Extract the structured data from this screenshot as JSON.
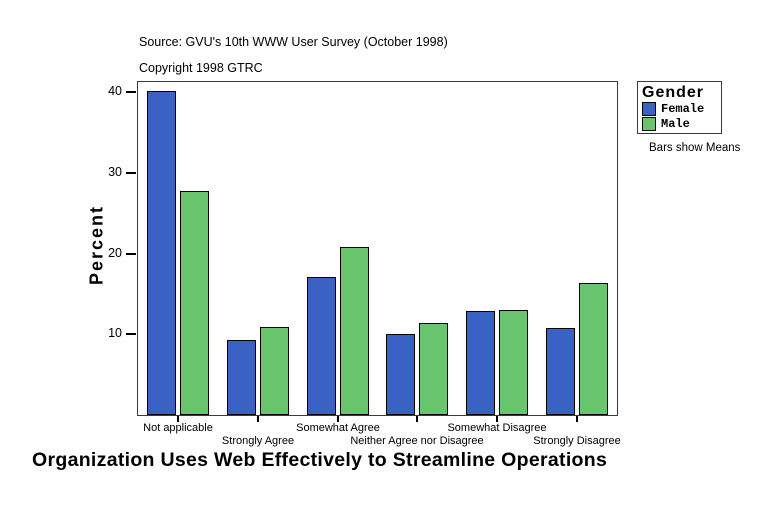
{
  "header": {
    "source_line": "Source: GVU's 10th WWW User Survey (October 1998)",
    "copyright_line": "Copyright 1998 GTRC"
  },
  "legend": {
    "title": "Gender",
    "items": [
      {
        "label": "Female",
        "color": "#3A62C4"
      },
      {
        "label": "Male",
        "color": "#68C46D"
      }
    ],
    "note": "Bars show Means"
  },
  "chart_data": {
    "type": "bar",
    "title": "Organization Uses Web Effectively to Streamline Operations",
    "xlabel": "",
    "ylabel": "Percent",
    "categories": [
      "Not applicable",
      "Strongly Agree",
      "Somewhat Agree",
      "Neither Agree nor Disagree",
      "Somewhat Disagree",
      "Strongly Disagree"
    ],
    "series": [
      {
        "name": "Female",
        "color": "#3A62C4",
        "values": [
          40.2,
          9.3,
          17.1,
          10.0,
          12.9,
          10.8
        ]
      },
      {
        "name": "Male",
        "color": "#68C46D",
        "values": [
          27.7,
          10.9,
          20.8,
          11.4,
          13.0,
          16.4
        ]
      }
    ],
    "yticks": [
      10,
      20,
      30,
      40
    ],
    "ylim": [
      0,
      41.5
    ],
    "grid": false,
    "legend_position": "upper-right",
    "note": "Bars show Means"
  }
}
